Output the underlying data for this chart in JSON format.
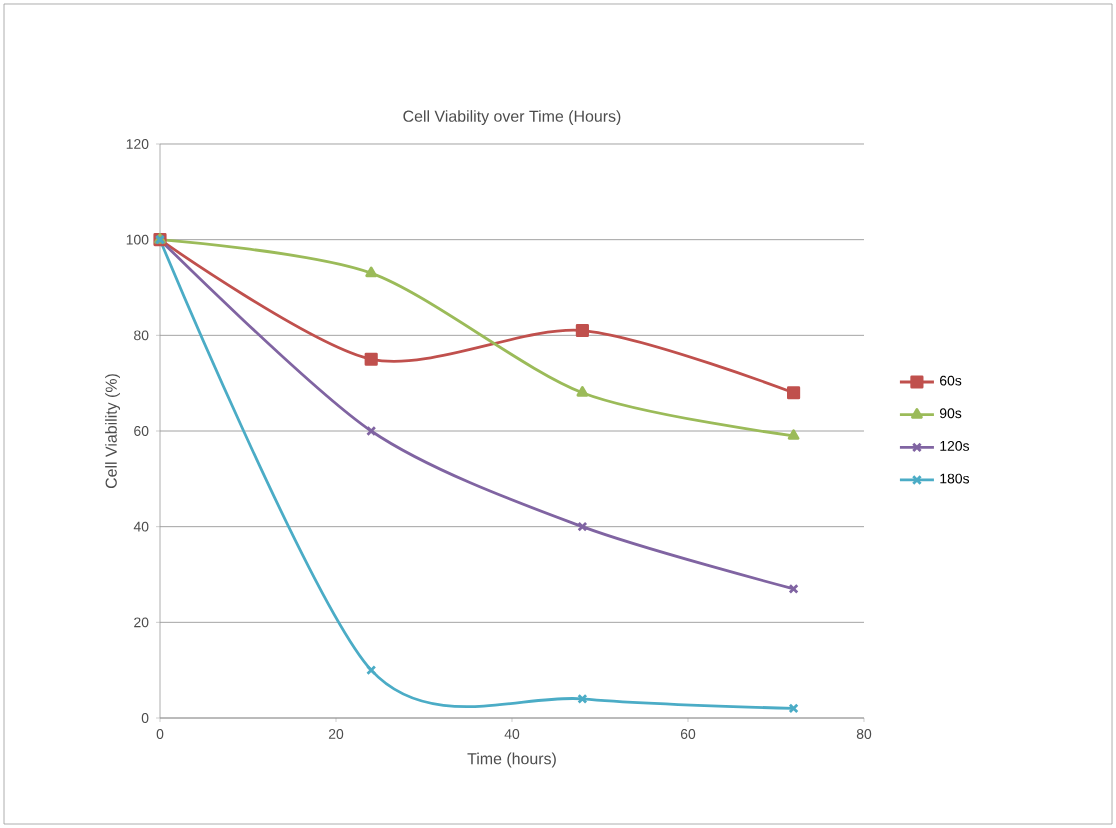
{
  "chart_data": {
    "type": "line",
    "title": "Cell Viability over Time (Hours)",
    "xlabel": "Time (hours)",
    "ylabel": "Cell Viability (%)",
    "x": [
      0,
      24,
      48,
      72
    ],
    "series": [
      {
        "name": "60s",
        "color": "#c0504d",
        "values": [
          100,
          75,
          81,
          68
        ],
        "marker": "square"
      },
      {
        "name": "90s",
        "color": "#9bbb59",
        "values": [
          100,
          93,
          68,
          59
        ],
        "marker": "triangle"
      },
      {
        "name": "120s",
        "color": "#8064a2",
        "values": [
          100,
          60,
          40,
          27
        ],
        "marker": "cross"
      },
      {
        "name": "180s",
        "color": "#4bacc6",
        "values": [
          100,
          10,
          4,
          2
        ],
        "marker": "cross"
      }
    ],
    "xlim": [
      0,
      80
    ],
    "xticks": [
      0,
      20,
      40,
      60,
      80
    ],
    "ylim": [
      0,
      120
    ],
    "yticks": [
      0,
      20,
      40,
      60,
      80,
      100,
      120
    ],
    "grid": "y",
    "legend": "right",
    "line_style": "solid"
  }
}
